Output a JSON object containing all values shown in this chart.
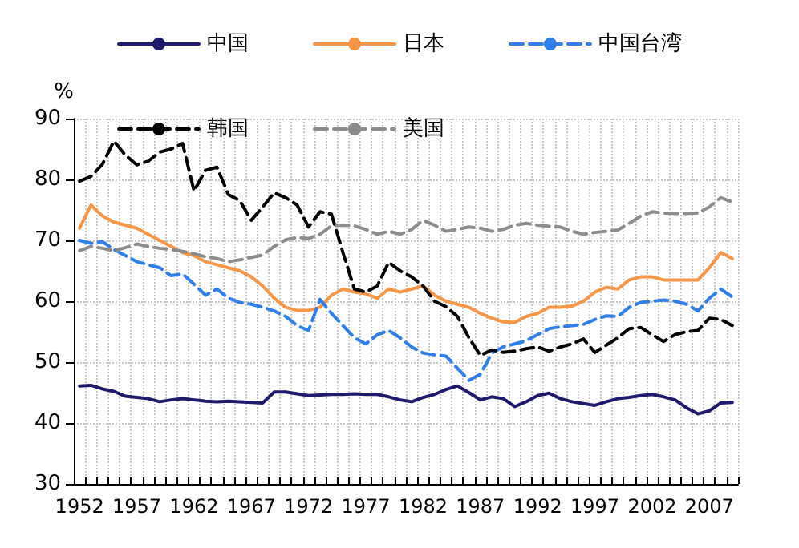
{
  "chart_data": {
    "type": "line",
    "ylabel": "%",
    "ylim": [
      30,
      90
    ],
    "yticks": [
      30,
      40,
      50,
      60,
      70,
      80,
      90
    ],
    "grid": true,
    "legend": "top",
    "marker": "none",
    "categories": [
      "1952",
      null,
      null,
      null,
      null,
      "1957",
      null,
      null,
      null,
      null,
      "1962",
      null,
      null,
      null,
      null,
      "1967",
      null,
      null,
      null,
      null,
      "1972",
      null,
      null,
      null,
      null,
      "1977",
      null,
      null,
      null,
      null,
      "1982",
      null,
      null,
      null,
      null,
      "1987",
      null,
      null,
      null,
      null,
      "1992",
      null,
      null,
      null,
      null,
      "1997",
      null,
      null,
      null,
      null,
      "2002",
      null,
      null,
      null,
      null,
      "2007",
      null,
      null
    ],
    "series": [
      {
        "name": "中国",
        "color": "#1f1a6e",
        "line_style": "solid",
        "values": [
          46.1,
          46.2,
          45.6,
          45.2,
          44.4,
          44.2,
          44,
          43.5,
          43.8,
          44,
          43.8,
          43.6,
          43.5,
          43.6,
          43.5,
          43.4,
          43.3,
          45.1,
          45.1,
          44.8,
          44.5,
          44.6,
          44.7,
          44.7,
          44.8,
          44.7,
          44.7,
          44.3,
          43.8,
          43.5,
          44.2,
          44.7,
          45.5,
          46.1,
          45,
          43.8,
          44.3,
          44,
          42.7,
          43.5,
          44.5,
          44.9,
          44,
          43.5,
          43.2,
          42.9,
          43.5,
          44,
          44.2,
          44.5,
          44.7,
          44.3,
          43.8,
          42.5,
          41.5,
          42,
          43.3,
          43.4
        ]
      },
      {
        "name": "日本",
        "color": "#f79646",
        "line_style": "solid",
        "values": [
          72,
          75.8,
          74,
          73,
          72.5,
          72,
          71,
          70,
          69,
          68,
          67.5,
          66.5,
          66,
          65.5,
          65,
          64,
          62.5,
          60.5,
          59,
          58.5,
          58.5,
          59,
          61,
          62,
          61.5,
          61.2,
          60.5,
          62,
          61.5,
          62,
          62.5,
          61,
          60,
          59.5,
          59,
          58,
          57.2,
          56.6,
          56.5,
          57.5,
          58,
          59,
          59,
          59.2,
          60,
          61.5,
          62.3,
          62,
          63.5,
          64,
          64,
          63.5,
          63.5,
          63.5,
          63.5,
          65.5,
          68,
          67
        ]
      },
      {
        "name": "中国台湾",
        "color": "#2f7fe8",
        "line_style": "dashed",
        "values": [
          70,
          69.5,
          69.8,
          68.5,
          67.5,
          66.5,
          66,
          65.5,
          64.2,
          64.5,
          62.8,
          61,
          62,
          60.5,
          59.8,
          59.5,
          59,
          58.4,
          57.5,
          56,
          55.2,
          60.3,
          58,
          56,
          54,
          53,
          54.5,
          55.2,
          54,
          52.5,
          51.5,
          51.2,
          51,
          49,
          47,
          48,
          51.5,
          52.5,
          53,
          53.5,
          54.5,
          55.5,
          55.8,
          56,
          56.2,
          57,
          57.6,
          57.5,
          59,
          59.8,
          60,
          60.2,
          60,
          59.5,
          58.4,
          60.5,
          62,
          60.7
        ]
      },
      {
        "name": "韩国",
        "color": "#000000",
        "line_style": "dashed",
        "values": [
          79.7,
          80.5,
          82.5,
          86.3,
          84,
          82.4,
          83,
          84.5,
          85,
          85.9,
          78.1,
          81.5,
          82,
          77.5,
          76.5,
          73.3,
          75.5,
          77.8,
          77,
          75.8,
          72.2,
          74.7,
          74.3,
          68,
          62,
          61.5,
          62.5,
          66.4,
          65,
          64,
          62.5,
          60,
          59.1,
          57.5,
          54,
          51.1,
          52,
          51.6,
          51.8,
          52.2,
          52.5,
          51.8,
          52.5,
          53,
          53.8,
          51.6,
          52.8,
          54,
          55.5,
          55.7,
          54.5,
          53.4,
          54.5,
          55,
          55.2,
          57.2,
          57,
          56
        ]
      },
      {
        "name": "美国",
        "color": "#8c8c8c",
        "line_style": "dashed",
        "values": [
          68.3,
          69,
          68.7,
          68.3,
          68.8,
          69.4,
          69,
          68.7,
          68.5,
          68.2,
          67.8,
          67.3,
          67,
          66.5,
          66.8,
          67.2,
          67.6,
          69,
          70.1,
          70.5,
          70.3,
          71,
          72.4,
          72.5,
          72.4,
          71.8,
          71,
          71.5,
          71,
          71.8,
          73.3,
          72.5,
          71.5,
          71.8,
          72.2,
          72,
          71.5,
          71.8,
          72.5,
          72.8,
          72.5,
          72.3,
          72.2,
          71.5,
          71,
          71.3,
          71.5,
          71.7,
          72.8,
          74,
          74.7,
          74.5,
          74.4,
          74.4,
          74.5,
          75.5,
          77,
          76.3
        ]
      }
    ]
  }
}
